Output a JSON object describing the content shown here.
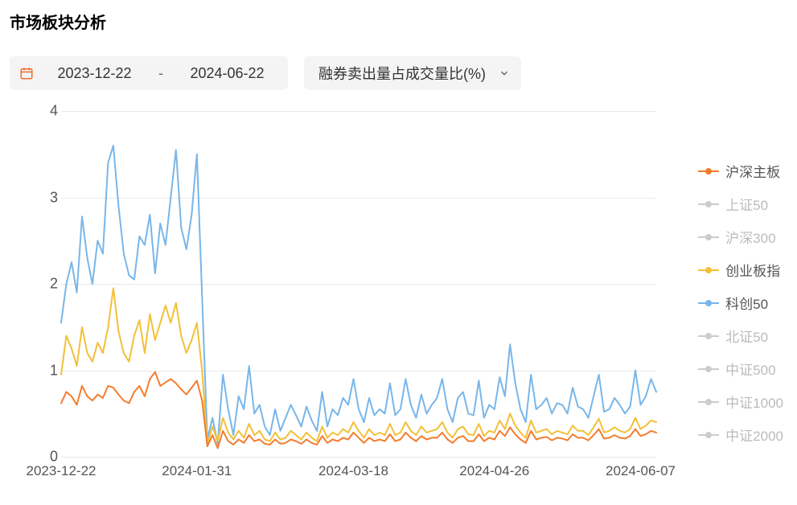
{
  "title": "市场板块分析",
  "date_picker": {
    "start": "2023-12-22",
    "end": "2024-06-22",
    "icon_color": "#f56c2d"
  },
  "dropdown": {
    "selected": "融券卖出量占成交量比(%)"
  },
  "chart": {
    "type": "line",
    "background_color": "#ffffff",
    "grid_color": "#e8e8e8",
    "axis_text_color": "#555555",
    "y": {
      "min": 0,
      "max": 4,
      "ticks": [
        0,
        1,
        2,
        3,
        4
      ]
    },
    "x": {
      "n_points": 115,
      "tick_labels": [
        "2023-12-22",
        "2024-01-31",
        "2024-03-18",
        "2024-04-26",
        "2024-06-07"
      ],
      "tick_positions": [
        0,
        26,
        56,
        83,
        111
      ]
    },
    "line_width": 2,
    "legend": [
      {
        "key": "hs_main",
        "label": "沪深主板",
        "color": "#f57c2d",
        "active": true
      },
      {
        "key": "sse50",
        "label": "上证50",
        "color": "#cccccc",
        "active": false
      },
      {
        "key": "hs300",
        "label": "沪深300",
        "color": "#cccccc",
        "active": false
      },
      {
        "key": "gem",
        "label": "创业板指",
        "color": "#f2c037",
        "active": true
      },
      {
        "key": "star50",
        "label": "科创50",
        "color": "#78b6ea",
        "active": true
      },
      {
        "key": "bse50",
        "label": "北证50",
        "color": "#cccccc",
        "active": false
      },
      {
        "key": "csi500",
        "label": "中证500",
        "color": "#cccccc",
        "active": false
      },
      {
        "key": "csi1000",
        "label": "中证1000",
        "color": "#cccccc",
        "active": false
      },
      {
        "key": "csi2000",
        "label": "中证2000",
        "color": "#cccccc",
        "active": false
      }
    ],
    "series": {
      "star50": [
        1.55,
        2.0,
        2.25,
        1.9,
        2.78,
        2.3,
        2.0,
        2.5,
        2.35,
        3.4,
        3.6,
        2.9,
        2.35,
        2.1,
        2.05,
        2.55,
        2.45,
        2.8,
        2.12,
        2.7,
        2.45,
        3.0,
        3.55,
        2.65,
        2.4,
        2.8,
        3.5,
        1.85,
        0.2,
        0.45,
        0.15,
        0.95,
        0.55,
        0.25,
        0.7,
        0.55,
        1.05,
        0.5,
        0.6,
        0.35,
        0.25,
        0.55,
        0.3,
        0.45,
        0.6,
        0.48,
        0.35,
        0.58,
        0.42,
        0.3,
        0.75,
        0.35,
        0.55,
        0.48,
        0.68,
        0.6,
        0.9,
        0.55,
        0.4,
        0.68,
        0.48,
        0.55,
        0.5,
        0.85,
        0.48,
        0.55,
        0.9,
        0.6,
        0.45,
        0.72,
        0.5,
        0.6,
        0.68,
        0.9,
        0.55,
        0.4,
        0.68,
        0.75,
        0.5,
        0.48,
        0.88,
        0.45,
        0.6,
        0.55,
        0.92,
        0.7,
        1.3,
        0.85,
        0.55,
        0.4,
        0.95,
        0.55,
        0.6,
        0.68,
        0.5,
        0.62,
        0.6,
        0.5,
        0.8,
        0.58,
        0.55,
        0.45,
        0.7,
        0.95,
        0.52,
        0.55,
        0.68,
        0.6,
        0.5,
        0.58,
        1.0,
        0.6,
        0.7,
        0.9,
        0.75
      ],
      "gem": [
        0.95,
        1.4,
        1.25,
        1.05,
        1.5,
        1.2,
        1.1,
        1.32,
        1.2,
        1.5,
        1.95,
        1.45,
        1.2,
        1.1,
        1.4,
        1.58,
        1.2,
        1.65,
        1.35,
        1.55,
        1.75,
        1.55,
        1.78,
        1.4,
        1.2,
        1.35,
        1.55,
        1.0,
        0.15,
        0.35,
        0.18,
        0.45,
        0.28,
        0.2,
        0.3,
        0.22,
        0.38,
        0.25,
        0.3,
        0.2,
        0.18,
        0.28,
        0.2,
        0.22,
        0.3,
        0.25,
        0.2,
        0.28,
        0.22,
        0.18,
        0.35,
        0.22,
        0.28,
        0.25,
        0.32,
        0.28,
        0.4,
        0.3,
        0.22,
        0.32,
        0.25,
        0.28,
        0.25,
        0.38,
        0.25,
        0.28,
        0.4,
        0.3,
        0.25,
        0.35,
        0.28,
        0.3,
        0.32,
        0.4,
        0.28,
        0.22,
        0.32,
        0.35,
        0.26,
        0.25,
        0.38,
        0.24,
        0.3,
        0.28,
        0.42,
        0.32,
        0.5,
        0.36,
        0.28,
        0.22,
        0.42,
        0.28,
        0.3,
        0.32,
        0.26,
        0.3,
        0.28,
        0.26,
        0.36,
        0.3,
        0.3,
        0.25,
        0.34,
        0.44,
        0.28,
        0.3,
        0.34,
        0.3,
        0.28,
        0.32,
        0.45,
        0.32,
        0.36,
        0.42,
        0.4
      ],
      "hs_main": [
        0.62,
        0.75,
        0.7,
        0.6,
        0.82,
        0.7,
        0.65,
        0.72,
        0.68,
        0.82,
        0.8,
        0.72,
        0.65,
        0.62,
        0.75,
        0.82,
        0.7,
        0.9,
        0.98,
        0.82,
        0.86,
        0.9,
        0.85,
        0.78,
        0.72,
        0.8,
        0.88,
        0.65,
        0.12,
        0.25,
        0.1,
        0.3,
        0.18,
        0.14,
        0.2,
        0.16,
        0.25,
        0.18,
        0.2,
        0.15,
        0.14,
        0.2,
        0.15,
        0.16,
        0.2,
        0.18,
        0.15,
        0.2,
        0.16,
        0.14,
        0.24,
        0.16,
        0.2,
        0.18,
        0.22,
        0.2,
        0.28,
        0.22,
        0.16,
        0.22,
        0.18,
        0.2,
        0.18,
        0.26,
        0.18,
        0.2,
        0.28,
        0.22,
        0.18,
        0.24,
        0.2,
        0.22,
        0.22,
        0.28,
        0.2,
        0.16,
        0.22,
        0.24,
        0.18,
        0.18,
        0.26,
        0.18,
        0.22,
        0.2,
        0.3,
        0.24,
        0.34,
        0.26,
        0.2,
        0.16,
        0.3,
        0.2,
        0.22,
        0.23,
        0.19,
        0.22,
        0.21,
        0.19,
        0.26,
        0.22,
        0.22,
        0.19,
        0.25,
        0.32,
        0.21,
        0.22,
        0.25,
        0.22,
        0.21,
        0.24,
        0.32,
        0.24,
        0.26,
        0.3,
        0.28
      ]
    }
  },
  "colors": {
    "inactive_legend_text": "#bbbbbb",
    "active_legend_text": "#555555"
  }
}
